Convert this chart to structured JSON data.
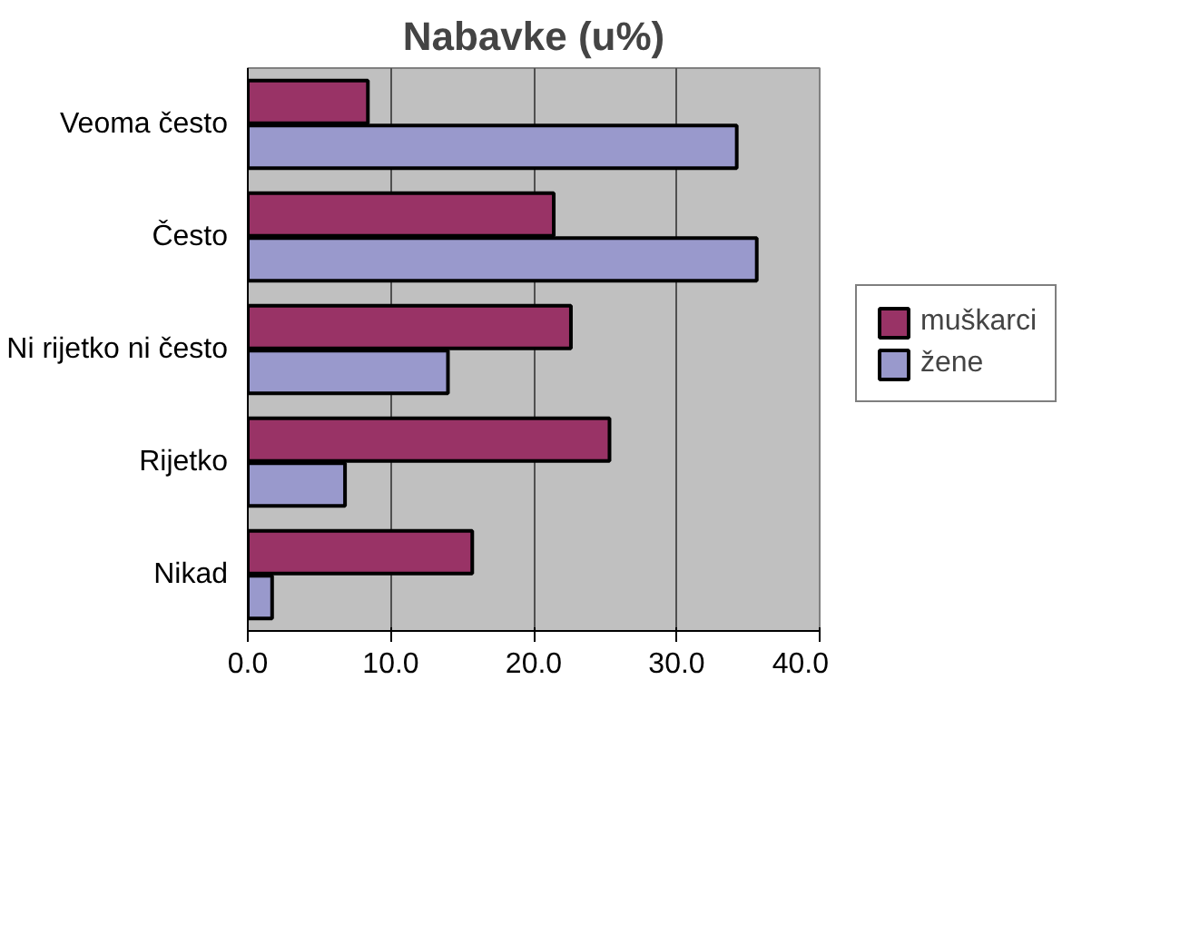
{
  "chart_data": {
    "type": "bar",
    "orientation": "horizontal",
    "title": "Nabavke (u%)",
    "categories": [
      "Veoma često",
      "Često",
      "Ni rijetko ni često",
      "Rijetko",
      "Nikad"
    ],
    "series": [
      {
        "name": "muškarci",
        "color": "#993366",
        "values": [
          8.4,
          21.4,
          22.6,
          25.3,
          15.7
        ]
      },
      {
        "name": "žene",
        "color": "#9999cc",
        "values": [
          34.2,
          35.6,
          14.0,
          6.8,
          1.7
        ]
      }
    ],
    "xlim": [
      0,
      40
    ],
    "xticks": [
      {
        "value": 0,
        "label": "0.0"
      },
      {
        "value": 10,
        "label": "10.0"
      },
      {
        "value": 20,
        "label": "20.0"
      },
      {
        "value": 30,
        "label": "30.0"
      },
      {
        "value": 40,
        "label": "40.0"
      }
    ],
    "grid": "x",
    "legend": "right"
  }
}
